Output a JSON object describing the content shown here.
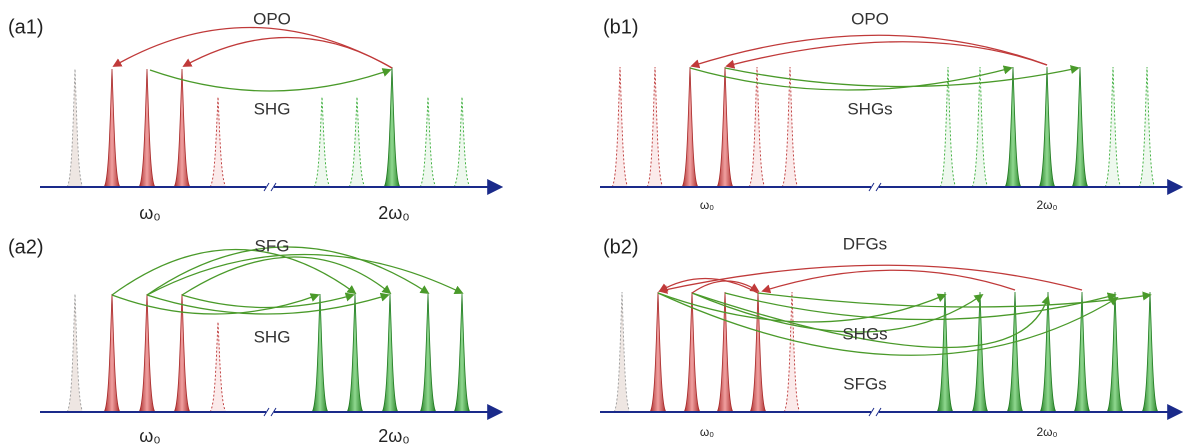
{
  "panels": [
    {
      "label": "(a1)",
      "processes": [
        "OPO",
        "SHG"
      ],
      "axis_labels": [
        "ω₀",
        "2ω₀"
      ]
    },
    {
      "label": "(a2)",
      "processes": [
        "SFG",
        "SHG"
      ],
      "axis_labels": [
        "ω₀",
        "2ω₀"
      ]
    },
    {
      "label": "(b1)",
      "processes": [
        "OPO",
        "SHGs"
      ],
      "axis_labels": [
        "ω₀",
        "2ω₀"
      ]
    },
    {
      "label": "(b2)",
      "processes": [
        "DFGs",
        "SHGs",
        "SFGs"
      ],
      "axis_labels": [
        "ω₀",
        "2ω₀"
      ]
    }
  ]
}
